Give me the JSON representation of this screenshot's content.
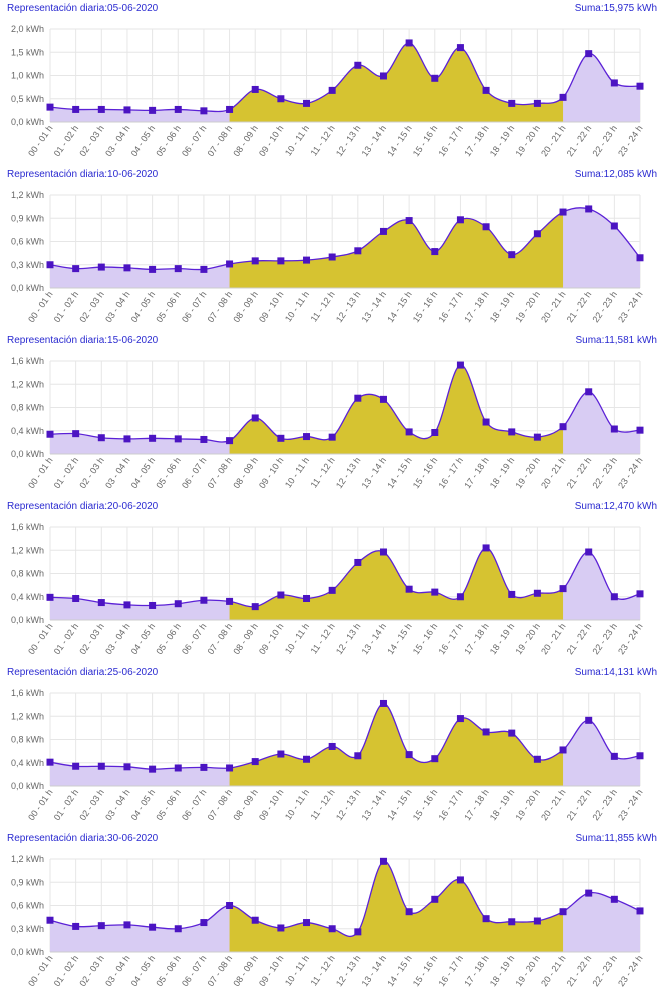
{
  "colors": {
    "line": "#5b21d6",
    "marker": "#4b14c2",
    "fill_off_peak": "#d8ccf3",
    "fill_peak": "#d6c331",
    "grid": "#e6e6e6",
    "title_text": "#2a2ad0",
    "axis_text": "#666666"
  },
  "chart_data": [
    {
      "type": "area",
      "title": "Representación diaria:05-06-2020",
      "sum_label": "Suma:15,975 kWh",
      "categories": [
        "00 - 01 h",
        "01 - 02 h",
        "02 - 03 h",
        "03 - 04 h",
        "04 - 05 h",
        "05 - 06 h",
        "06 - 07 h",
        "07 - 08 h",
        "08 - 09 h",
        "09 - 10 h",
        "10 - 11 h",
        "11 - 12 h",
        "12 - 13 h",
        "13 - 14 h",
        "14 - 15 h",
        "15 - 16 h",
        "16 - 17 h",
        "17 - 18 h",
        "18 - 19 h",
        "19 - 20 h",
        "20 - 21 h",
        "21 - 22 h",
        "22 - 23 h",
        "23 - 24 h"
      ],
      "values": [
        0.32,
        0.27,
        0.27,
        0.26,
        0.25,
        0.27,
        0.24,
        0.27,
        0.7,
        0.5,
        0.4,
        0.68,
        1.22,
        0.99,
        1.7,
        0.94,
        1.6,
        0.68,
        0.4,
        0.4,
        0.53,
        1.47,
        0.84,
        0.77
      ],
      "ylim": [
        0,
        2.0
      ],
      "yticks": [
        "0,0 kWh",
        "0,5 kWh",
        "1,0 kWh",
        "1,5 kWh",
        "2,0 kWh"
      ],
      "peak_range": [
        "07 - 08 h",
        "20 - 21 h"
      ]
    },
    {
      "type": "area",
      "title": "Representación diaria:10-06-2020",
      "sum_label": "Suma:12,085 kWh",
      "categories": [
        "00 - 01 h",
        "01 - 02 h",
        "02 - 03 h",
        "03 - 04 h",
        "04 - 05 h",
        "05 - 06 h",
        "06 - 07 h",
        "07 - 08 h",
        "08 - 09 h",
        "09 - 10 h",
        "10 - 11 h",
        "11 - 12 h",
        "12 - 13 h",
        "13 - 14 h",
        "14 - 15 h",
        "15 - 16 h",
        "16 - 17 h",
        "17 - 18 h",
        "18 - 19 h",
        "19 - 20 h",
        "20 - 21 h",
        "21 - 22 h",
        "22 - 23 h",
        "23 - 24 h"
      ],
      "values": [
        0.3,
        0.25,
        0.27,
        0.26,
        0.24,
        0.25,
        0.24,
        0.31,
        0.35,
        0.35,
        0.36,
        0.4,
        0.48,
        0.73,
        0.87,
        0.47,
        0.88,
        0.79,
        0.43,
        0.7,
        0.98,
        1.02,
        0.8,
        0.39
      ],
      "ylim": [
        0,
        1.2
      ],
      "yticks": [
        "0,0 kWh",
        "0,3 kWh",
        "0,6 kWh",
        "0,9 kWh",
        "1,2 kWh"
      ],
      "peak_range": [
        "07 - 08 h",
        "20 - 21 h"
      ]
    },
    {
      "type": "area",
      "title": "Representación diaria:15-06-2020",
      "sum_label": "Suma:11,581 kWh",
      "categories": [
        "00 - 01 h",
        "01 - 02 h",
        "02 - 03 h",
        "03 - 04 h",
        "04 - 05 h",
        "05 - 06 h",
        "06 - 07 h",
        "07 - 08 h",
        "08 - 09 h",
        "09 - 10 h",
        "10 - 11 h",
        "11 - 12 h",
        "12 - 13 h",
        "13 - 14 h",
        "14 - 15 h",
        "15 - 16 h",
        "16 - 17 h",
        "17 - 18 h",
        "18 - 19 h",
        "19 - 20 h",
        "20 - 21 h",
        "21 - 22 h",
        "22 - 23 h",
        "23 - 24 h"
      ],
      "values": [
        0.34,
        0.35,
        0.28,
        0.26,
        0.27,
        0.26,
        0.25,
        0.23,
        0.62,
        0.27,
        0.3,
        0.29,
        0.96,
        0.94,
        0.38,
        0.37,
        1.53,
        0.55,
        0.38,
        0.29,
        0.47,
        1.07,
        0.43,
        0.41
      ],
      "ylim": [
        0,
        1.6
      ],
      "yticks": [
        "0,0 kWh",
        "0,4 kWh",
        "0,8 kWh",
        "1,2 kWh",
        "1,6 kWh"
      ],
      "peak_range": [
        "07 - 08 h",
        "20 - 21 h"
      ]
    },
    {
      "type": "area",
      "title": "Representación diaria:20-06-2020",
      "sum_label": "Suma:12,470 kWh",
      "categories": [
        "00 - 01 h",
        "01 - 02 h",
        "02 - 03 h",
        "03 - 04 h",
        "04 - 05 h",
        "05 - 06 h",
        "06 - 07 h",
        "07 - 08 h",
        "08 - 09 h",
        "09 - 10 h",
        "10 - 11 h",
        "11 - 12 h",
        "12 - 13 h",
        "13 - 14 h",
        "14 - 15 h",
        "15 - 16 h",
        "16 - 17 h",
        "17 - 18 h",
        "18 - 19 h",
        "19 - 20 h",
        "20 - 21 h",
        "21 - 22 h",
        "22 - 23 h",
        "23 - 24 h"
      ],
      "values": [
        0.39,
        0.37,
        0.3,
        0.26,
        0.25,
        0.28,
        0.34,
        0.32,
        0.23,
        0.43,
        0.37,
        0.51,
        0.99,
        1.17,
        0.53,
        0.48,
        0.4,
        1.24,
        0.44,
        0.46,
        0.54,
        1.17,
        0.4,
        0.45
      ],
      "ylim": [
        0,
        1.6
      ],
      "yticks": [
        "0,0 kWh",
        "0,4 kWh",
        "0,8 kWh",
        "1,2 kWh",
        "1,6 kWh"
      ],
      "peak_range": [
        "07 - 08 h",
        "20 - 21 h"
      ]
    },
    {
      "type": "area",
      "title": "Representación diaria:25-06-2020",
      "sum_label": "Suma:14,131 kWh",
      "categories": [
        "00 - 01 h",
        "01 - 02 h",
        "02 - 03 h",
        "03 - 04 h",
        "04 - 05 h",
        "05 - 06 h",
        "06 - 07 h",
        "07 - 08 h",
        "08 - 09 h",
        "09 - 10 h",
        "10 - 11 h",
        "11 - 12 h",
        "12 - 13 h",
        "13 - 14 h",
        "14 - 15 h",
        "15 - 16 h",
        "16 - 17 h",
        "17 - 18 h",
        "18 - 19 h",
        "19 - 20 h",
        "20 - 21 h",
        "21 - 22 h",
        "22 - 23 h",
        "23 - 24 h"
      ],
      "values": [
        0.41,
        0.34,
        0.34,
        0.33,
        0.29,
        0.31,
        0.32,
        0.31,
        0.42,
        0.55,
        0.46,
        0.68,
        0.52,
        1.42,
        0.54,
        0.47,
        1.16,
        0.93,
        0.91,
        0.46,
        0.62,
        1.13,
        0.51,
        0.52
      ],
      "ylim": [
        0,
        1.6
      ],
      "yticks": [
        "0,0 kWh",
        "0,4 kWh",
        "0,8 kWh",
        "1,2 kWh",
        "1,6 kWh"
      ],
      "peak_range": [
        "07 - 08 h",
        "20 - 21 h"
      ]
    },
    {
      "type": "area",
      "title": "Representación diaria:30-06-2020",
      "sum_label": "Suma:11,855 kWh",
      "categories": [
        "00 - 01 h",
        "01 - 02 h",
        "02 - 03 h",
        "03 - 04 h",
        "04 - 05 h",
        "05 - 06 h",
        "06 - 07 h",
        "07 - 08 h",
        "08 - 09 h",
        "09 - 10 h",
        "10 - 11 h",
        "11 - 12 h",
        "12 - 13 h",
        "13 - 14 h",
        "14 - 15 h",
        "15 - 16 h",
        "16 - 17 h",
        "17 - 18 h",
        "18 - 19 h",
        "19 - 20 h",
        "20 - 21 h",
        "21 - 22 h",
        "22 - 23 h",
        "23 - 24 h"
      ],
      "values": [
        0.41,
        0.33,
        0.34,
        0.35,
        0.32,
        0.3,
        0.38,
        0.6,
        0.41,
        0.31,
        0.38,
        0.3,
        0.26,
        1.17,
        0.52,
        0.68,
        0.93,
        0.43,
        0.39,
        0.4,
        0.52,
        0.76,
        0.68,
        0.53
      ],
      "ylim": [
        0,
        1.2
      ],
      "yticks": [
        "0,0 kWh",
        "0,3 kWh",
        "0,6 kWh",
        "0,9 kWh",
        "1,2 kWh"
      ],
      "peak_range": [
        "07 - 08 h",
        "20 - 21 h"
      ]
    }
  ]
}
